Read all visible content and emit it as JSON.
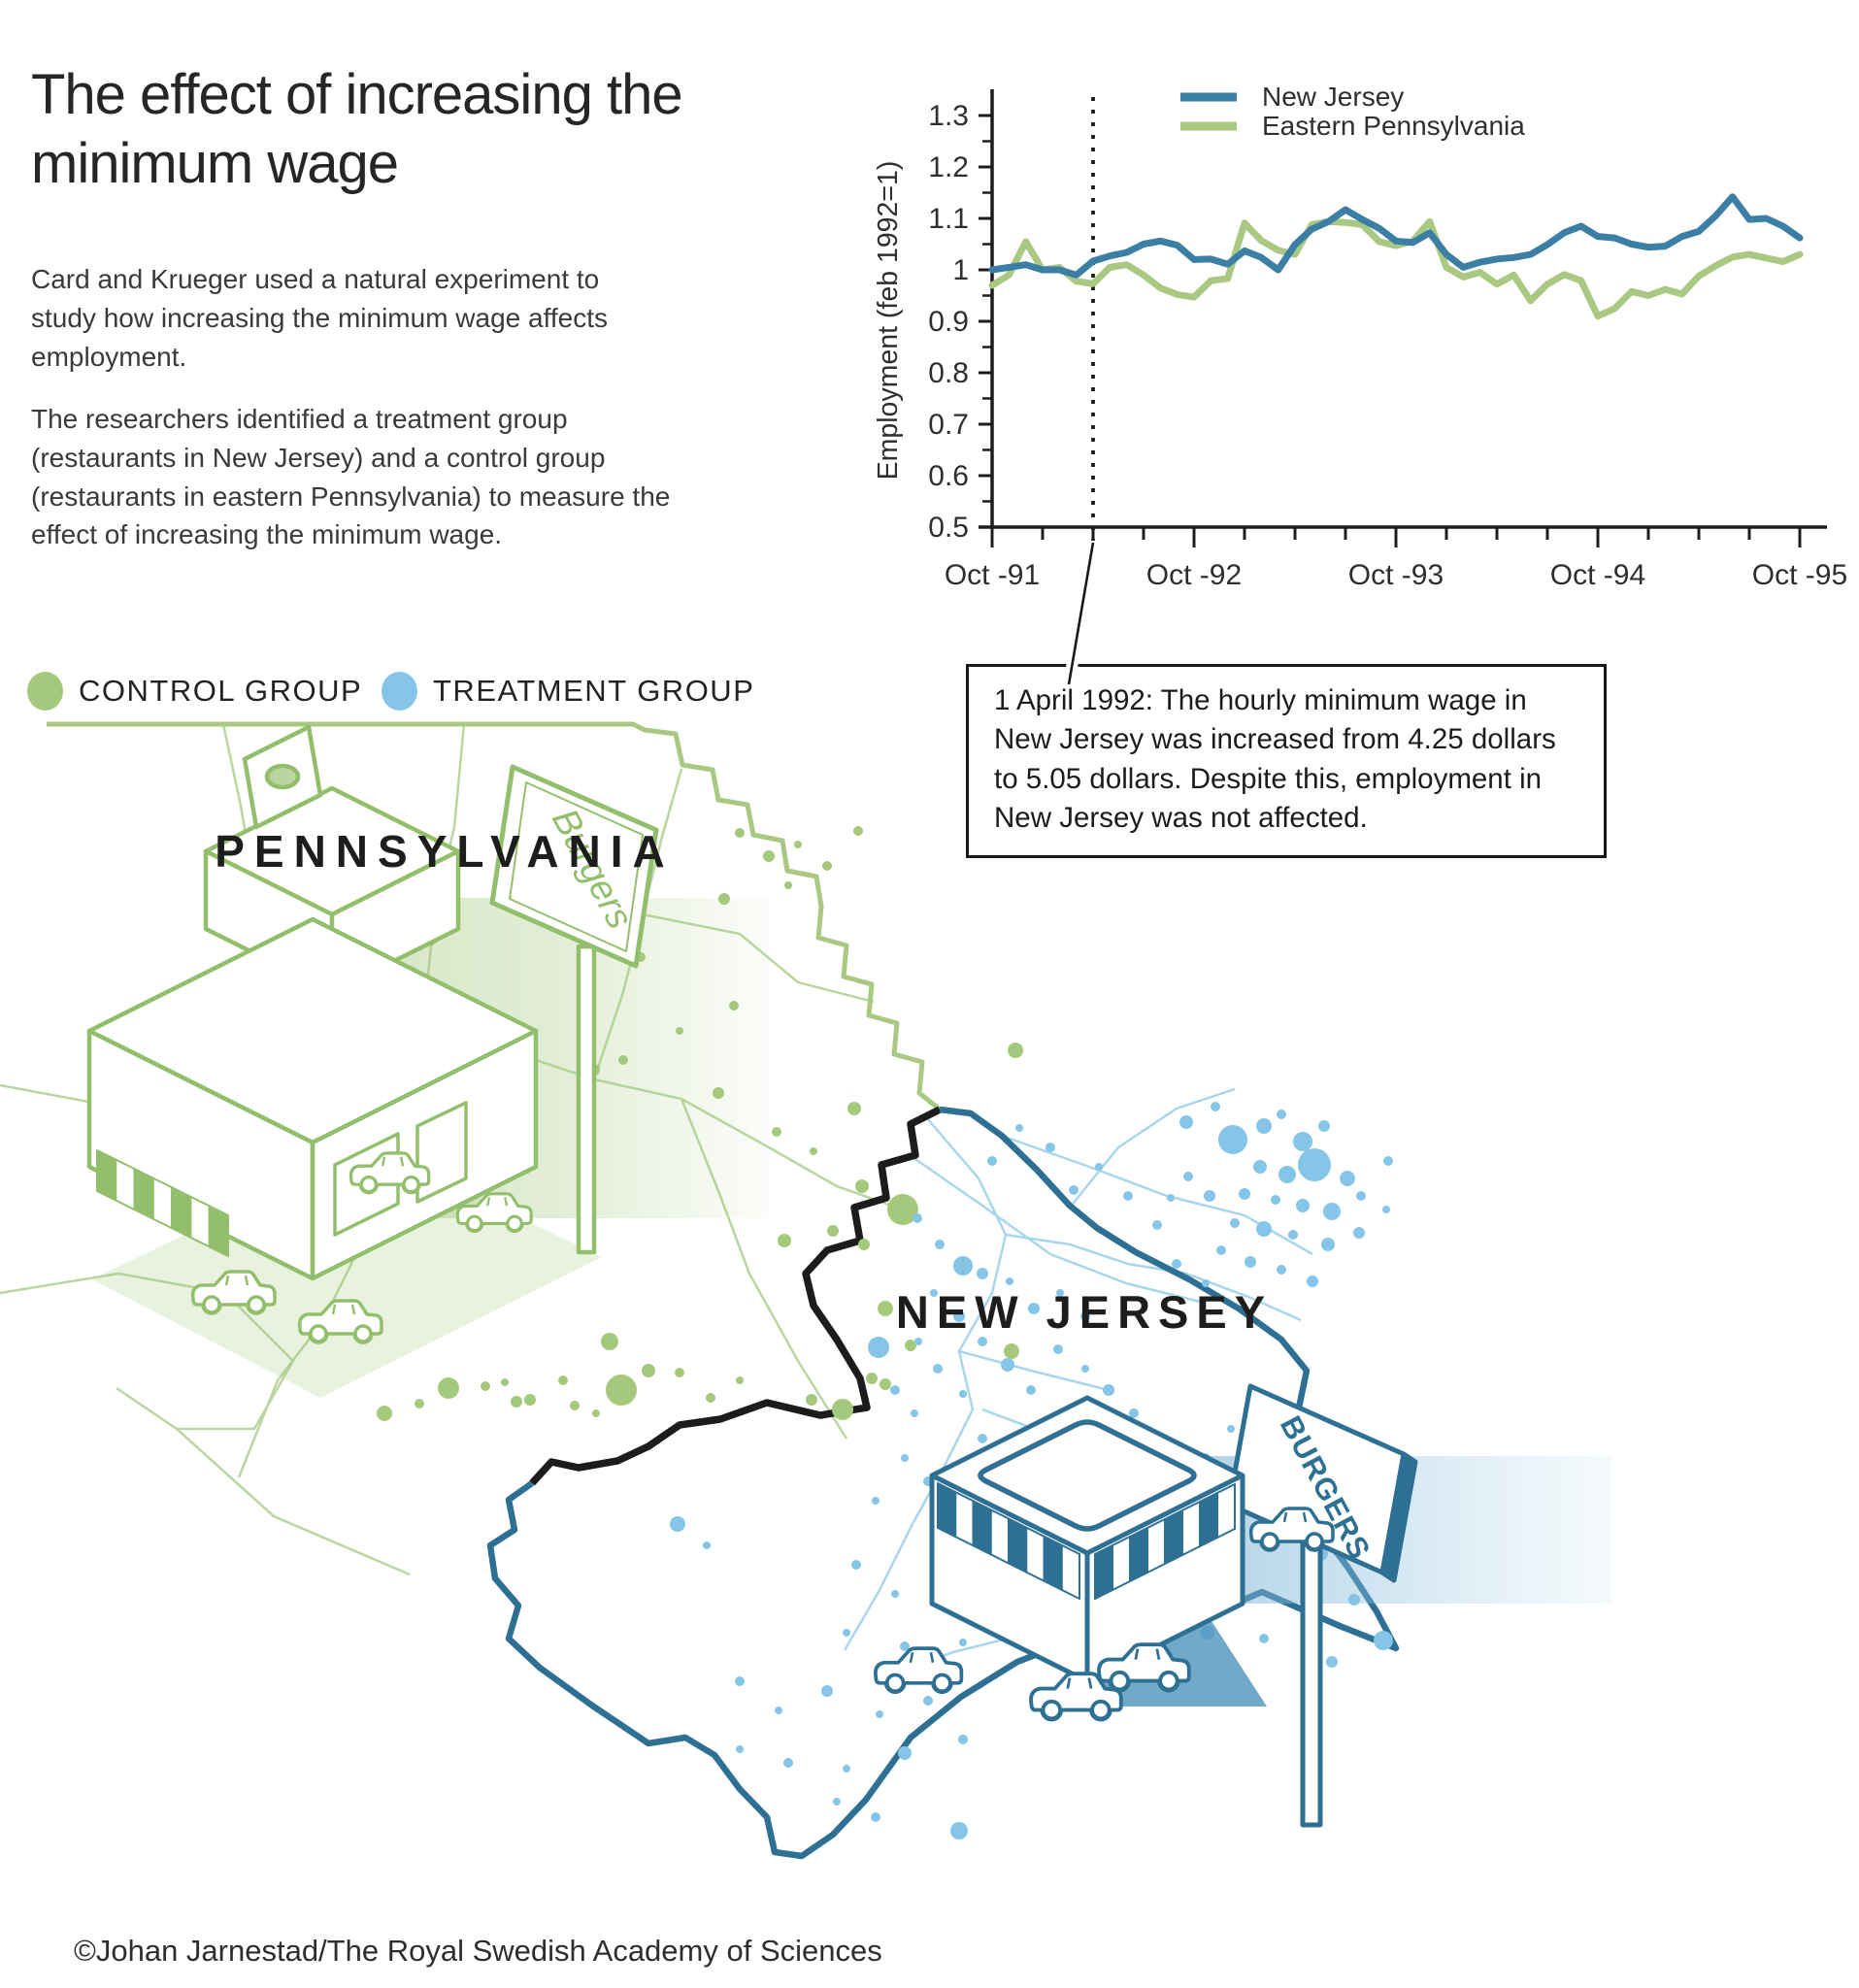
{
  "header": {
    "title": "The effect of increasing the minimum wage"
  },
  "intro": {
    "p1": "Card and Krueger used a natural experiment to study how increasing the minimum wage affects employment.",
    "p2": "The researchers identified a treatment group (restaurants in New Jersey) and a control group (restaurants in eastern Pennsylvania) to measure the effect of increasing the minimum wage."
  },
  "map_legend": {
    "control": "CONTROL GROUP",
    "treatment": "TREATMENT GROUP"
  },
  "chart_data": {
    "type": "line",
    "title": "",
    "ylabel": "Employment (feb 1992=1)",
    "x_tick_labels": [
      "Oct -91",
      "Oct -92",
      "Oct -93",
      "Oct -94",
      "Oct -95"
    ],
    "x_tick_month_positions": [
      0,
      12,
      24,
      36,
      48
    ],
    "minor_x_tick_every_months": 3,
    "y_ticks": [
      0.5,
      0.6,
      0.7,
      0.8,
      0.9,
      1,
      1.1,
      1.2,
      1.3
    ],
    "ylim": [
      0.5,
      1.35
    ],
    "x_start": "Oct 1991",
    "n_months": 49,
    "grid": false,
    "legend_position": "top-inside",
    "event_line": {
      "month_index": 6,
      "date": "1 April 1992"
    },
    "series": [
      {
        "name": "New Jersey",
        "color": "#3c7fa5",
        "values": [
          1.0,
          1.005,
          1.01,
          1.0,
          1.0,
          0.99,
          1.017,
          1.027,
          1.034,
          1.05,
          1.056,
          1.048,
          1.02,
          1.021,
          1.011,
          1.037,
          1.024,
          1.0,
          1.049,
          1.079,
          1.094,
          1.117,
          1.098,
          1.081,
          1.056,
          1.053,
          1.072,
          1.03,
          1.005,
          1.015,
          1.021,
          1.024,
          1.03,
          1.049,
          1.072,
          1.085,
          1.065,
          1.062,
          1.05,
          1.044,
          1.046,
          1.065,
          1.075,
          1.105,
          1.142,
          1.098,
          1.1,
          1.085,
          1.062
        ]
      },
      {
        "name": "Eastern Pennsylvania",
        "color": "#a9c983",
        "values": [
          0.97,
          0.99,
          1.055,
          1.0,
          1.005,
          0.978,
          0.973,
          1.005,
          1.01,
          0.99,
          0.965,
          0.952,
          0.947,
          0.979,
          0.983,
          1.091,
          1.057,
          1.038,
          1.03,
          1.088,
          1.094,
          1.092,
          1.088,
          1.055,
          1.047,
          1.056,
          1.094,
          1.005,
          0.986,
          0.995,
          0.972,
          0.99,
          0.94,
          0.972,
          0.991,
          0.979,
          0.91,
          0.925,
          0.958,
          0.95,
          0.962,
          0.953,
          0.988,
          1.008,
          1.025,
          1.03,
          1.023,
          1.016,
          1.03
        ]
      }
    ],
    "annotation": "1 April 1992: The hourly minimum wage in New Jersey was increased from 4.25 dollars to 5.05 dollars. Despite this, employment in New Jersey was not affected."
  },
  "map": {
    "labels": {
      "pennsylvania": "PENNSYLVANIA",
      "new_jersey": "NEW JERSEY"
    },
    "signs": {
      "pa": "Burgers",
      "nj": "BURGERS"
    },
    "control_dots": [
      [
        762,
        858,
        5
      ],
      [
        792,
        882,
        6
      ],
      [
        822,
        870,
        4
      ],
      [
        852,
        892,
        5
      ],
      [
        884,
        856,
        5
      ],
      [
        812,
        912,
        4
      ],
      [
        746,
        926,
        6
      ],
      [
        660,
        986,
        5
      ],
      [
        756,
        1036,
        5
      ],
      [
        700,
        1062,
        4
      ],
      [
        740,
        1126,
        6
      ],
      [
        800,
        1166,
        5
      ],
      [
        838,
        1186,
        4
      ],
      [
        440,
        962,
        13
      ],
      [
        492,
        1062,
        9
      ],
      [
        488,
        1092,
        11
      ],
      [
        604,
        1076,
        5
      ],
      [
        612,
        1102,
        6
      ],
      [
        642,
        1092,
        5
      ],
      [
        880,
        1142,
        7
      ],
      [
        1046,
        1082,
        8
      ],
      [
        930,
        1246,
        16
      ],
      [
        888,
        1222,
        7
      ],
      [
        858,
        1268,
        6
      ],
      [
        808,
        1278,
        7
      ],
      [
        890,
        1282,
        6
      ],
      [
        912,
        1348,
        8
      ],
      [
        938,
        1386,
        6
      ],
      [
        1042,
        1392,
        8
      ],
      [
        836,
        1442,
        6
      ],
      [
        912,
        1426,
        6
      ],
      [
        628,
        1382,
        9
      ],
      [
        668,
        1412,
        7
      ],
      [
        640,
        1432,
        16
      ],
      [
        700,
        1414,
        5
      ],
      [
        732,
        1440,
        5
      ],
      [
        762,
        1422,
        4
      ],
      [
        580,
        1422,
        5
      ],
      [
        546,
        1442,
        6
      ],
      [
        520,
        1424,
        4
      ],
      [
        462,
        1430,
        11
      ],
      [
        396,
        1456,
        8
      ],
      [
        432,
        1446,
        5
      ],
      [
        500,
        1428,
        5
      ],
      [
        532,
        1444,
        6
      ],
      [
        592,
        1448,
        5
      ],
      [
        614,
        1456,
        4
      ],
      [
        868,
        1452,
        11
      ],
      [
        898,
        1420,
        6
      ]
    ],
    "treatment_dots": [
      [
        1222,
        1156,
        7
      ],
      [
        1252,
        1140,
        5
      ],
      [
        1270,
        1174,
        15
      ],
      [
        1302,
        1160,
        8
      ],
      [
        1320,
        1148,
        5
      ],
      [
        1342,
        1176,
        10
      ],
      [
        1364,
        1160,
        6
      ],
      [
        1298,
        1202,
        7
      ],
      [
        1326,
        1210,
        9
      ],
      [
        1354,
        1200,
        17
      ],
      [
        1388,
        1214,
        8
      ],
      [
        1342,
        1242,
        7
      ],
      [
        1314,
        1236,
        5
      ],
      [
        1282,
        1230,
        6
      ],
      [
        1372,
        1248,
        9
      ],
      [
        1402,
        1232,
        5
      ],
      [
        1400,
        1270,
        6
      ],
      [
        1368,
        1282,
        7
      ],
      [
        1332,
        1272,
        5
      ],
      [
        1302,
        1266,
        8
      ],
      [
        1272,
        1260,
        5
      ],
      [
        1246,
        1232,
        6
      ],
      [
        1224,
        1212,
        5
      ],
      [
        1258,
        1288,
        5
      ],
      [
        1288,
        1300,
        6
      ],
      [
        1320,
        1308,
        5
      ],
      [
        1352,
        1320,
        6
      ],
      [
        1242,
        1322,
        4
      ],
      [
        1212,
        1302,
        5
      ],
      [
        1192,
        1262,
        5
      ],
      [
        1206,
        1234,
        4
      ],
      [
        1162,
        1232,
        5
      ],
      [
        1132,
        1202,
        4
      ],
      [
        1106,
        1226,
        5
      ],
      [
        1082,
        1182,
        5
      ],
      [
        1050,
        1162,
        4
      ],
      [
        1022,
        1196,
        5
      ],
      [
        1430,
        1196,
        5
      ],
      [
        1428,
        1246,
        4
      ],
      [
        992,
        1304,
        10
      ],
      [
        1012,
        1312,
        6
      ],
      [
        968,
        1282,
        5
      ],
      [
        1040,
        1320,
        4
      ],
      [
        945,
        1255,
        5
      ],
      [
        1065,
        1348,
        6
      ],
      [
        1092,
        1332,
        4
      ],
      [
        1118,
        1356,
        5
      ],
      [
        962,
        1332,
        4
      ],
      [
        988,
        1356,
        6
      ],
      [
        1012,
        1382,
        5
      ],
      [
        1038,
        1406,
        7
      ],
      [
        1062,
        1432,
        5
      ],
      [
        946,
        1382,
        4
      ],
      [
        966,
        1410,
        5
      ],
      [
        992,
        1436,
        4
      ],
      [
        1090,
        1390,
        5
      ],
      [
        1118,
        1410,
        4
      ],
      [
        1142,
        1432,
        6
      ],
      [
        1168,
        1456,
        5
      ],
      [
        1192,
        1480,
        4
      ],
      [
        922,
        1432,
        5
      ],
      [
        942,
        1456,
        4
      ],
      [
        905,
        1388,
        11
      ],
      [
        1012,
        1482,
        5
      ],
      [
        1062,
        1502,
        6
      ],
      [
        1112,
        1522,
        4
      ],
      [
        932,
        1502,
        4
      ],
      [
        956,
        1526,
        5
      ],
      [
        902,
        1546,
        4
      ],
      [
        1002,
        1562,
        5
      ],
      [
        1052,
        1582,
        4
      ],
      [
        698,
        1570,
        8
      ],
      [
        728,
        1592,
        4
      ],
      [
        882,
        1612,
        5
      ],
      [
        922,
        1642,
        4
      ],
      [
        976,
        1626,
        6
      ],
      [
        1032,
        1656,
        4
      ],
      [
        1082,
        1642,
        5
      ],
      [
        872,
        1682,
        4
      ],
      [
        932,
        1696,
        5
      ],
      [
        992,
        1692,
        4
      ],
      [
        762,
        1732,
        5
      ],
      [
        802,
        1762,
        4
      ],
      [
        852,
        1742,
        6
      ],
      [
        906,
        1766,
        4
      ],
      [
        956,
        1752,
        5
      ],
      [
        762,
        1802,
        4
      ],
      [
        812,
        1816,
        5
      ],
      [
        872,
        1822,
        4
      ],
      [
        932,
        1806,
        7
      ],
      [
        992,
        1792,
        5
      ],
      [
        862,
        1856,
        4
      ],
      [
        902,
        1872,
        5
      ],
      [
        988,
        1886,
        9
      ],
      [
        1160,
        1562,
        5
      ],
      [
        1212,
        1542,
        6
      ],
      [
        1242,
        1502,
        5
      ],
      [
        1268,
        1472,
        4
      ],
      [
        1322,
        1560,
        6
      ],
      [
        1360,
        1600,
        8
      ],
      [
        1395,
        1648,
        6
      ],
      [
        1302,
        1688,
        5
      ],
      [
        1244,
        1682,
        7
      ],
      [
        1190,
        1700,
        4
      ],
      [
        1140,
        1666,
        5
      ],
      [
        1425,
        1690,
        10
      ],
      [
        1372,
        1712,
        6
      ]
    ]
  },
  "footer": {
    "credit": "©Johan Jarnestad/The Royal Swedish Academy of Sciences"
  },
  "colors": {
    "nj_line": "#3c7fa5",
    "pa_line": "#a9c983",
    "nj_border": "#2e7093",
    "pa_border": "#a9c983",
    "control_dot": "#a5c97c",
    "treatment_dot": "#85c6e8",
    "axis": "#1d1d1b",
    "text": "#2f2f2f",
    "pa_art": "#93bf6d",
    "road_green": "#b9d6a0",
    "road_blue": "#a8d6ec"
  }
}
